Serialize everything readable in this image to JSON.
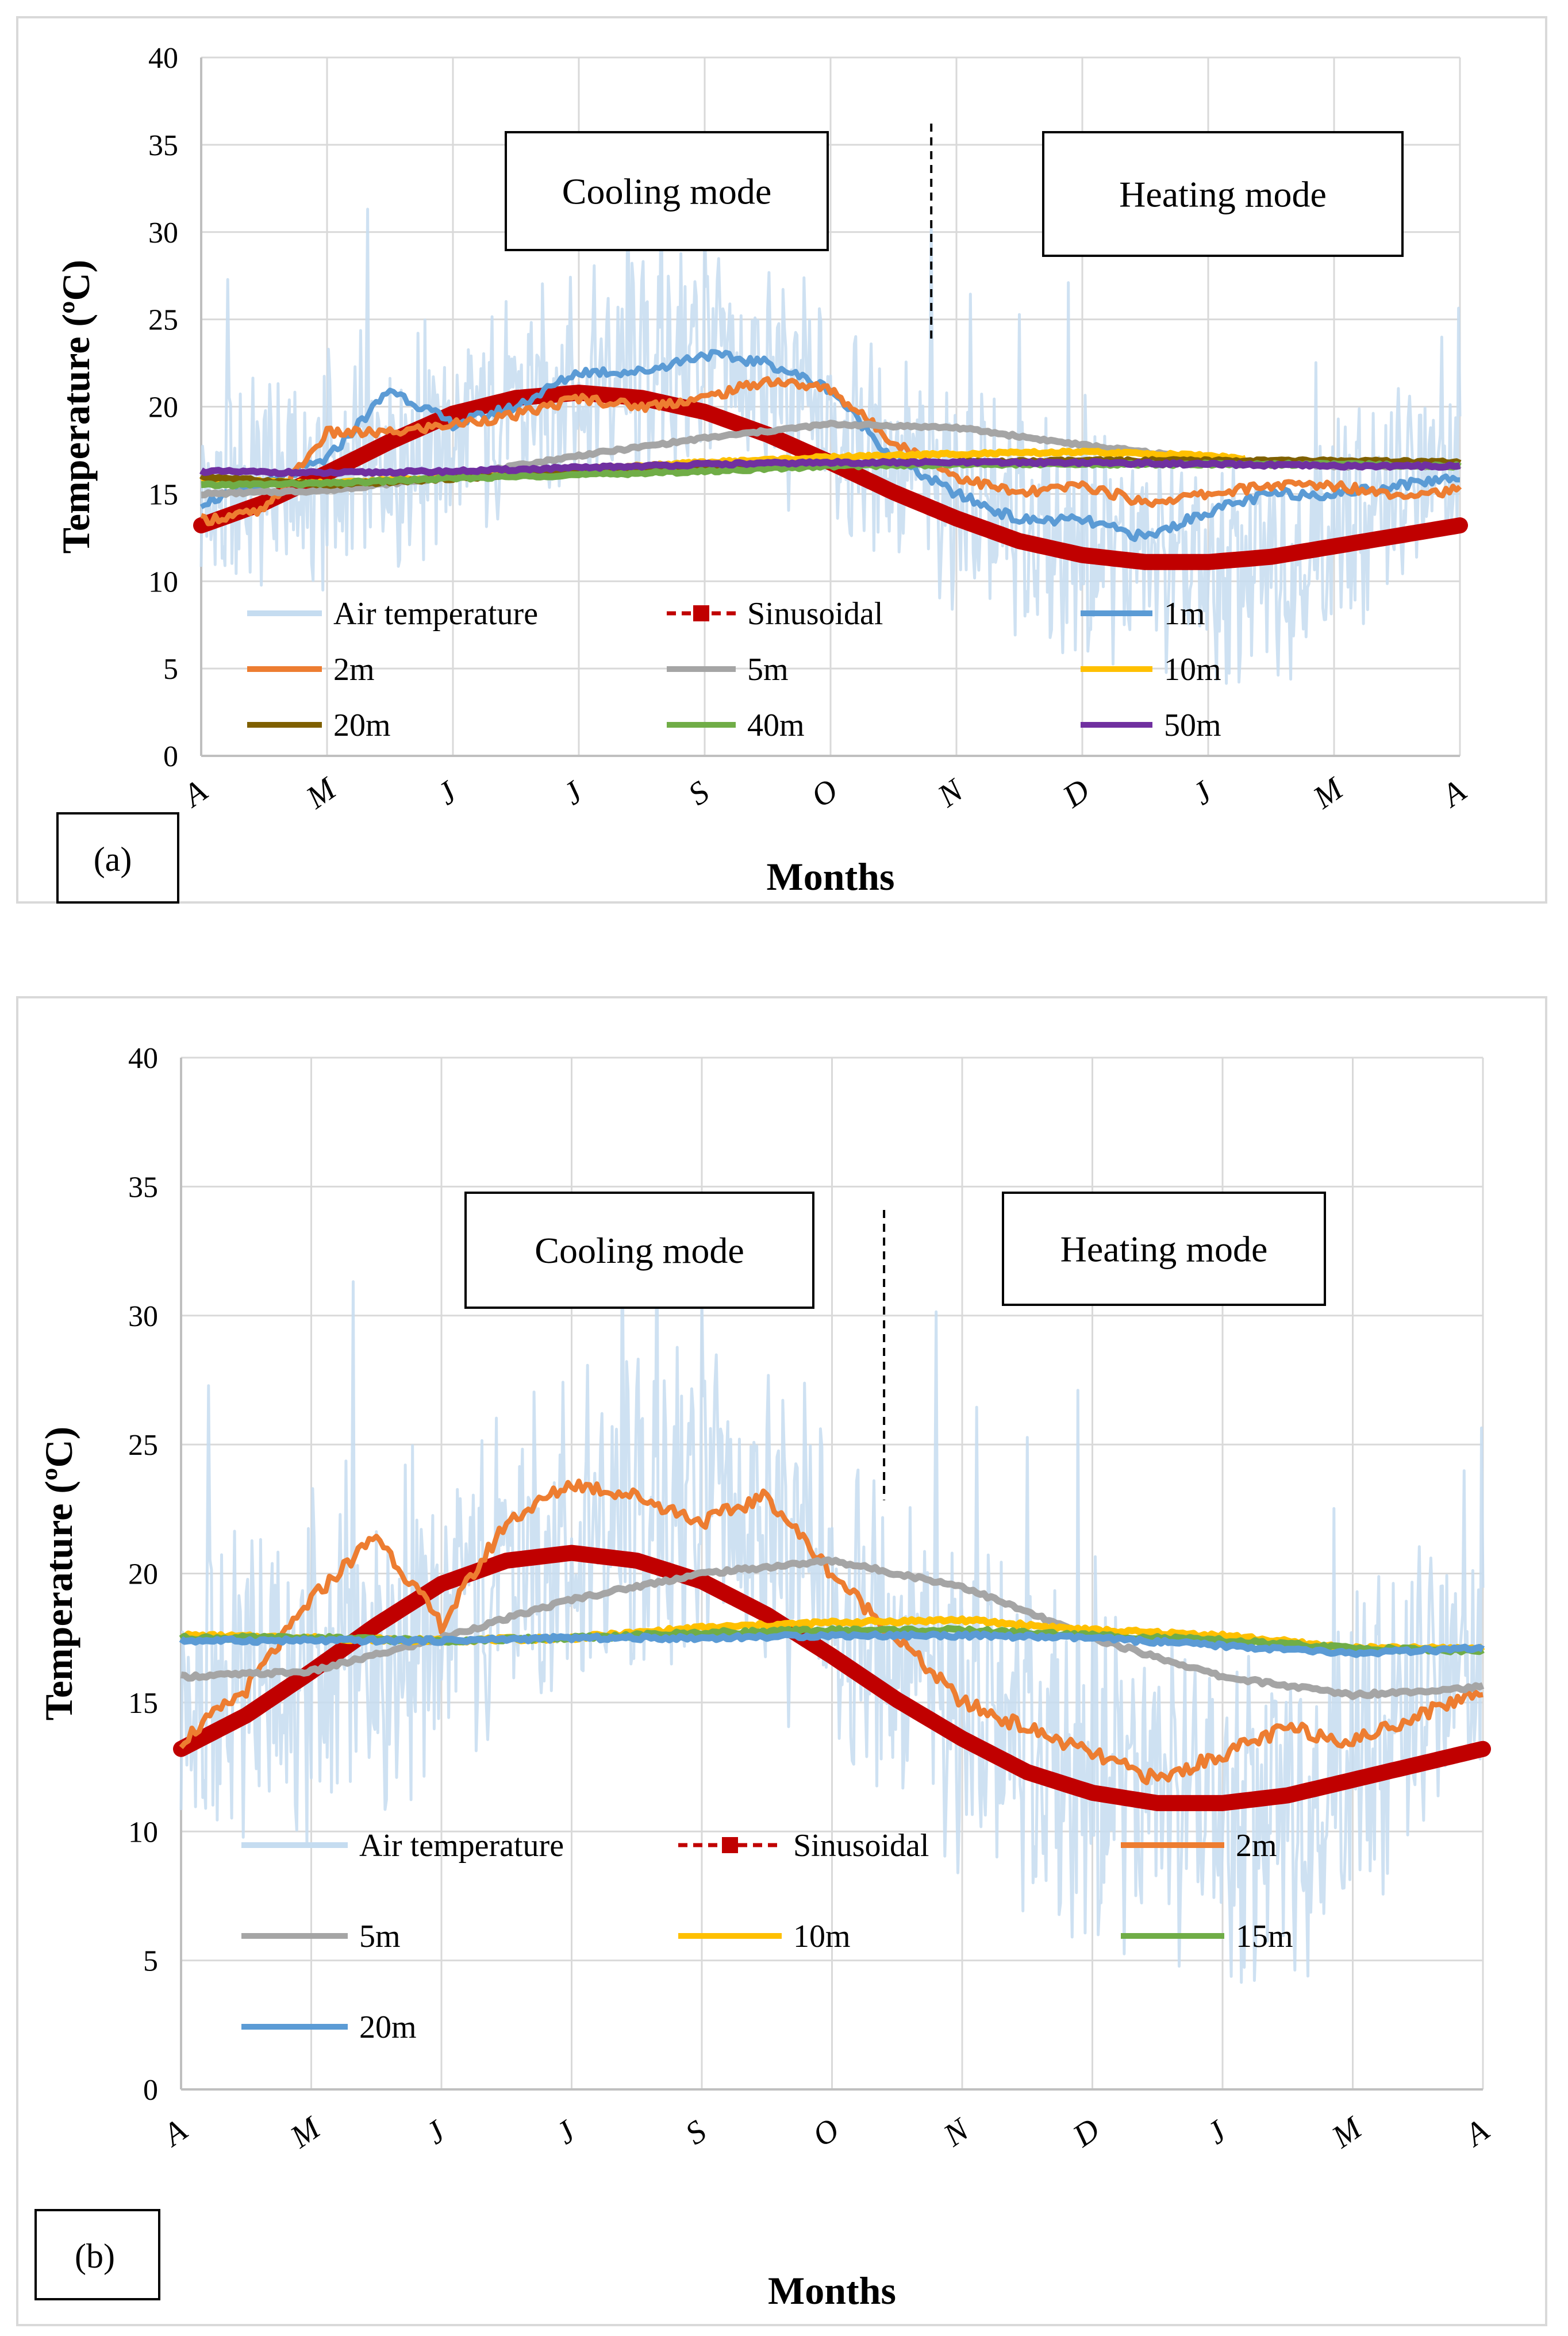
{
  "chart_data": [
    {
      "type": "line",
      "panel_label": "(a)",
      "xlabel": "Months",
      "ylabel": "Temperature (ºC)",
      "ylim": [
        0,
        40
      ],
      "y_ticks": [
        0,
        5,
        10,
        15,
        20,
        25,
        30,
        35,
        40
      ],
      "x_ticks": [
        "A",
        "M",
        "J",
        "J",
        "S",
        "O",
        "N",
        "D",
        "J",
        "M",
        "A"
      ],
      "grid": true,
      "annotations": [
        "Cooling mode",
        "Heating mode"
      ],
      "divider_month": 5.8,
      "series": [
        {
          "name": "Air temperature",
          "color": "#c5dcf0",
          "x": [
            0,
            0.5,
            1,
            1.5,
            2,
            2.5,
            3,
            3.5,
            4,
            4.5,
            5,
            5.5,
            6,
            6.5,
            7,
            7.5,
            8,
            8.5,
            9,
            9.5,
            10
          ],
          "y": [
            14,
            16,
            15,
            17,
            18,
            20,
            21,
            22,
            23,
            21,
            19,
            17,
            15,
            13,
            12,
            11,
            10,
            11,
            12,
            15,
            16
          ]
        },
        {
          "name": "Sinusoidal",
          "color": "#c00000",
          "x": [
            0,
            0.5,
            1,
            1.5,
            2,
            2.5,
            3,
            3.5,
            4,
            4.5,
            5,
            5.5,
            6,
            6.5,
            7,
            7.5,
            8,
            8.5,
            9,
            9.5,
            10
          ],
          "y": [
            13.2,
            14.5,
            16.2,
            18,
            19.6,
            20.5,
            20.8,
            20.5,
            19.7,
            18.4,
            16.8,
            15.1,
            13.6,
            12.3,
            11.5,
            11.1,
            11.1,
            11.4,
            12,
            12.6,
            13.2
          ]
        },
        {
          "name": "1m",
          "color": "#5b9bd5",
          "x": [
            0,
            0.5,
            1,
            1.5,
            2,
            2.5,
            3,
            3.5,
            4,
            4.5,
            5,
            5.5,
            6,
            6.5,
            7,
            7.5,
            8,
            8.5,
            9,
            9.5,
            10
          ],
          "y": [
            14.5,
            15.5,
            17,
            21,
            19,
            20,
            22,
            22,
            23,
            22.5,
            21,
            17,
            15,
            13.5,
            13.5,
            12.5,
            14,
            15,
            15,
            15.5,
            16
          ]
        },
        {
          "name": "2m",
          "color": "#ed7d31",
          "x": [
            0,
            0.5,
            1,
            1.5,
            2,
            2.5,
            3,
            3.5,
            4,
            4.5,
            5,
            5.5,
            6,
            6.5,
            7,
            7.5,
            8,
            8.5,
            9,
            9.5,
            10
          ],
          "y": [
            13.5,
            14,
            18.5,
            18.5,
            19,
            19.5,
            20.5,
            20,
            20.5,
            21.5,
            21,
            18,
            16,
            15,
            15.5,
            14.5,
            15,
            15.5,
            15.5,
            15,
            15.2
          ]
        },
        {
          "name": "5m",
          "color": "#a5a5a5",
          "x": [
            0,
            1,
            2,
            3,
            4,
            5,
            6,
            7,
            8,
            9,
            10
          ],
          "y": [
            15,
            15.2,
            16,
            17.2,
            18.2,
            19,
            18.8,
            17.8,
            17,
            16.6,
            16.6
          ]
        },
        {
          "name": "10m",
          "color": "#ffc000",
          "x": [
            0,
            1,
            2,
            3,
            4,
            5,
            6,
            7,
            8,
            8.3
          ],
          "y": [
            15.8,
            15.6,
            16,
            16.4,
            16.8,
            17.1,
            17.3,
            17.4,
            17.2,
            17
          ]
        },
        {
          "name": "20m",
          "color": "#7f6000",
          "x": [
            0,
            1,
            2,
            3,
            4,
            5,
            6,
            7,
            8,
            9,
            10
          ],
          "y": [
            16,
            15.5,
            15.9,
            16.2,
            16.5,
            16.7,
            16.8,
            16.9,
            16.9,
            16.9,
            16.8
          ]
        },
        {
          "name": "40m",
          "color": "#70ad47",
          "x": [
            0,
            1,
            2,
            3,
            4,
            5,
            6,
            7,
            8,
            9,
            10
          ],
          "y": [
            15.5,
            15.6,
            15.9,
            16.1,
            16.3,
            16.6,
            16.7,
            16.7,
            16.7,
            16.7,
            16.6
          ]
        },
        {
          "name": "50m",
          "color": "#7030a0",
          "x": [
            0,
            1,
            2,
            3,
            4,
            5,
            6,
            7,
            8,
            9,
            10
          ],
          "y": [
            16.3,
            16.2,
            16.3,
            16.5,
            16.7,
            16.8,
            16.8,
            16.8,
            16.7,
            16.6,
            16.6
          ]
        }
      ]
    },
    {
      "type": "line",
      "panel_label": "(b)",
      "xlabel": "Months",
      "ylabel": "Temperature (ºC)",
      "ylim": [
        0,
        40
      ],
      "y_ticks": [
        0,
        5,
        10,
        15,
        20,
        25,
        30,
        35,
        40
      ],
      "x_ticks": [
        "A",
        "M",
        "J",
        "J",
        "S",
        "O",
        "N",
        "D",
        "J",
        "M",
        "A"
      ],
      "grid": true,
      "annotations": [
        "Cooling mode",
        "Heating mode"
      ],
      "divider_month": 5.4,
      "series": [
        {
          "name": "Air temperature",
          "color": "#c5dcf0",
          "x": [
            0,
            0.5,
            1,
            1.5,
            2,
            2.5,
            3,
            3.5,
            4,
            4.5,
            5,
            5.5,
            6,
            6.5,
            7,
            7.5,
            8,
            8.5,
            9,
            9.5,
            10
          ],
          "y": [
            14,
            16,
            15,
            17,
            18,
            20,
            21,
            22,
            23,
            21,
            19,
            17,
            15,
            13,
            12,
            11,
            10,
            11,
            12,
            15,
            16
          ]
        },
        {
          "name": "Sinusoidal",
          "color": "#c00000",
          "x": [
            0,
            0.5,
            1,
            1.5,
            2,
            2.5,
            3,
            3.5,
            4,
            4.5,
            5,
            5.5,
            6,
            6.5,
            7,
            7.5,
            8,
            8.5,
            9,
            9.5,
            10
          ],
          "y": [
            13.2,
            14.5,
            16.2,
            18,
            19.6,
            20.5,
            20.8,
            20.5,
            19.7,
            18.4,
            16.8,
            15.1,
            13.6,
            12.3,
            11.5,
            11.1,
            11.1,
            11.4,
            12,
            12.6,
            13.2
          ]
        },
        {
          "name": "2m",
          "color": "#ed7d31",
          "x": [
            0,
            0.5,
            1,
            1.5,
            2,
            2.5,
            3,
            3.5,
            4,
            4.5,
            5,
            5.5,
            6,
            6.5,
            7,
            7.5,
            8,
            8.5,
            9,
            9.5,
            10
          ],
          "y": [
            13.5,
            15.5,
            19,
            21.5,
            18,
            22,
            23.5,
            23,
            22,
            23,
            20,
            17.5,
            15,
            14,
            13,
            12,
            13,
            14,
            13.5,
            14.5,
            15.5
          ]
        },
        {
          "name": "5m",
          "color": "#a5a5a5",
          "x": [
            0,
            1,
            2,
            3,
            4,
            5,
            6,
            7,
            8,
            9,
            10
          ],
          "y": [
            16,
            16.2,
            17.5,
            19,
            20,
            20.5,
            19.5,
            17.5,
            16,
            15.3,
            15.6
          ]
        },
        {
          "name": "10m",
          "color": "#ffc000",
          "x": [
            0,
            1,
            2,
            3,
            4,
            5,
            6,
            7,
            8,
            9,
            10
          ],
          "y": [
            17.6,
            17.5,
            17.4,
            17.5,
            17.9,
            18.1,
            18.2,
            17.8,
            17.6,
            17.1,
            17.1
          ]
        },
        {
          "name": "15m",
          "color": "#70ad47",
          "x": [
            0,
            1,
            2,
            3,
            4,
            5,
            6,
            7,
            8,
            9,
            10
          ],
          "y": [
            17.5,
            17.5,
            17.4,
            17.5,
            17.7,
            17.8,
            17.8,
            17.6,
            17.4,
            17.1,
            17
          ]
        },
        {
          "name": "20m",
          "color": "#5b9bd5",
          "x": [
            0,
            1,
            2,
            3,
            4,
            5,
            6,
            7,
            8,
            9,
            10
          ],
          "y": [
            17.4,
            17.4,
            17.4,
            17.5,
            17.5,
            17.6,
            17.6,
            17.5,
            17.2,
            16.9,
            17.1
          ]
        }
      ]
    }
  ]
}
